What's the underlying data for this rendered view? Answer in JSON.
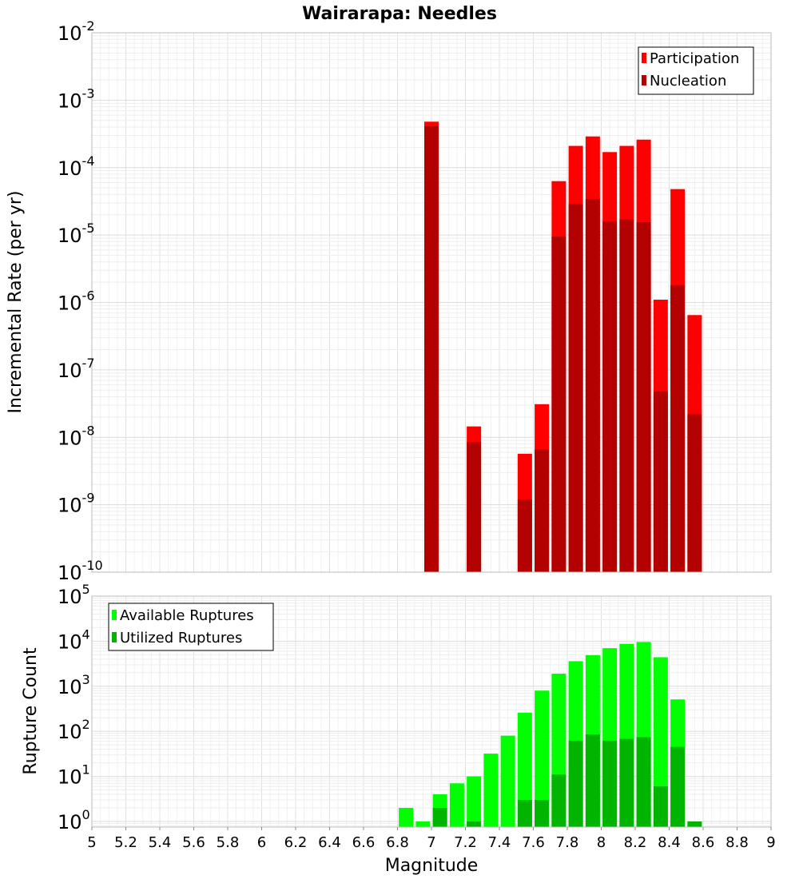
{
  "title": "Wairarapa: Needles",
  "xlabel": "Magnitude",
  "colors": {
    "participation": "#ff0000",
    "nucleation": "#b30000",
    "available": "#00ff00",
    "utilized": "#00b400"
  },
  "chart_data": [
    {
      "type": "bar",
      "ylabel": "Incremental Rate (per yr)",
      "yscale": "log",
      "ylim": [
        1e-10,
        0.01
      ],
      "xlim": [
        5,
        9
      ],
      "legend_position": "top-right",
      "series": [
        {
          "name": "Participation",
          "x": [
            7.0,
            7.25,
            7.55,
            7.65,
            7.75,
            7.85,
            7.95,
            8.05,
            8.15,
            8.25,
            8.35,
            8.45,
            8.55
          ],
          "values": [
            0.00048,
            1.45e-08,
            5.7e-09,
            3.1e-08,
            6.3e-05,
            0.00021,
            0.00029,
            0.00017,
            0.00021,
            0.00026,
            1.1e-06,
            4.8e-05,
            6.5e-07
          ]
        },
        {
          "name": "Nucleation",
          "x": [
            7.0,
            7.25,
            7.55,
            7.65,
            7.75,
            7.85,
            7.95,
            8.05,
            8.15,
            8.25,
            8.35,
            8.45,
            8.55
          ],
          "values": [
            0.00041,
            8.5e-09,
            1.2e-09,
            6.6e-09,
            9.5e-06,
            2.9e-05,
            3.4e-05,
            1.6e-05,
            1.7e-05,
            1.55e-05,
            4.8e-08,
            1.8e-06,
            2.2e-08
          ]
        }
      ]
    },
    {
      "type": "bar",
      "ylabel": "Rupture Count",
      "yscale": "log",
      "ylim": [
        0.75,
        100000
      ],
      "xlim": [
        5,
        9
      ],
      "legend_position": "top-left",
      "series": [
        {
          "name": "Available Ruptures",
          "x": [
            6.85,
            6.95,
            7.05,
            7.15,
            7.25,
            7.35,
            7.45,
            7.55,
            7.65,
            7.75,
            7.85,
            7.95,
            8.05,
            8.15,
            8.25,
            8.35,
            8.45
          ],
          "values": [
            2,
            1,
            4,
            7,
            10,
            32,
            80,
            260,
            800,
            1900,
            3600,
            4900,
            7000,
            8700,
            9600,
            4400,
            510
          ]
        },
        {
          "name": "Utilized Ruptures",
          "x": [
            7.05,
            7.25,
            7.55,
            7.65,
            7.75,
            7.85,
            7.95,
            8.05,
            8.15,
            8.25,
            8.35,
            8.45,
            8.55
          ],
          "values": [
            2,
            1,
            3,
            3,
            11,
            62,
            85,
            62,
            68,
            74,
            6,
            45,
            1
          ]
        }
      ]
    }
  ],
  "tick_labels": {
    "x": [
      "5",
      "5.2",
      "5.4",
      "5.6",
      "5.8",
      "6",
      "6.2",
      "6.4",
      "6.6",
      "6.8",
      "7",
      "7.2",
      "7.4",
      "7.6",
      "7.8",
      "8",
      "8.2",
      "8.4",
      "8.6",
      "8.8",
      "9"
    ],
    "top_y_exponents": [
      "-10",
      "-9",
      "-8",
      "-7",
      "-6",
      "-5",
      "-4",
      "-3",
      "-2"
    ],
    "bottom_y_exponents": [
      "0",
      "1",
      "2",
      "3",
      "4",
      "5"
    ],
    "base": "10"
  }
}
